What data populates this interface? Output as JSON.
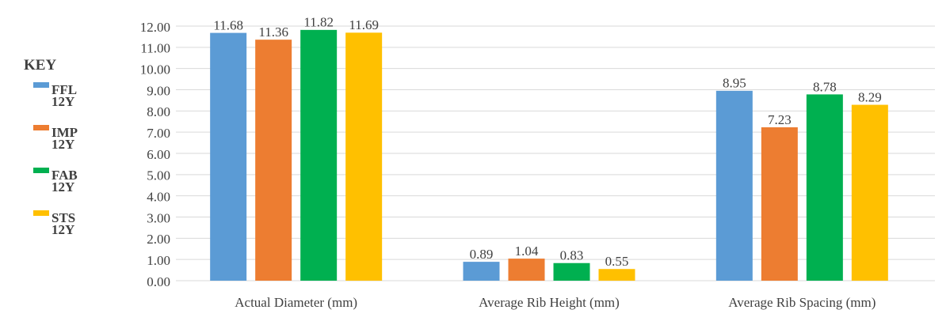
{
  "chart_data": {
    "type": "bar",
    "legend_title": "KEY",
    "legend": "left",
    "categories": [
      "Actual  Diameter (mm)",
      "Average Rib Height (mm)",
      "Average Rib Spacing (mm)"
    ],
    "series": [
      {
        "name": "FFL 12Y",
        "color": "#5b9bd5",
        "values": [
          11.68,
          0.89,
          8.95
        ]
      },
      {
        "name": "IMP 12Y",
        "color": "#ed7d31",
        "values": [
          11.36,
          1.04,
          7.23
        ]
      },
      {
        "name": "FAB 12Y",
        "color": "#00b050",
        "values": [
          11.82,
          0.83,
          8.78
        ]
      },
      {
        "name": "STS 12Y",
        "color": "#ffc000",
        "values": [
          11.69,
          0.55,
          8.29
        ]
      }
    ],
    "ylim": [
      0,
      12
    ],
    "yticks": [
      {
        "value": 0,
        "label": "0.00"
      },
      {
        "value": 1,
        "label": "1.00"
      },
      {
        "value": 2,
        "label": "2.00"
      },
      {
        "value": 3,
        "label": "3.00"
      },
      {
        "value": 4,
        "label": "4.00"
      },
      {
        "value": 5,
        "label": "5.00"
      },
      {
        "value": 6,
        "label": "6.00"
      },
      {
        "value": 7,
        "label": "7.00"
      },
      {
        "value": 8,
        "label": "8.00"
      },
      {
        "value": 9,
        "label": "9.00"
      },
      {
        "value": 10,
        "label": "10.00"
      },
      {
        "value": 11,
        "label": "11.00"
      },
      {
        "value": 12,
        "label": "12.00"
      }
    ],
    "grid": true
  }
}
